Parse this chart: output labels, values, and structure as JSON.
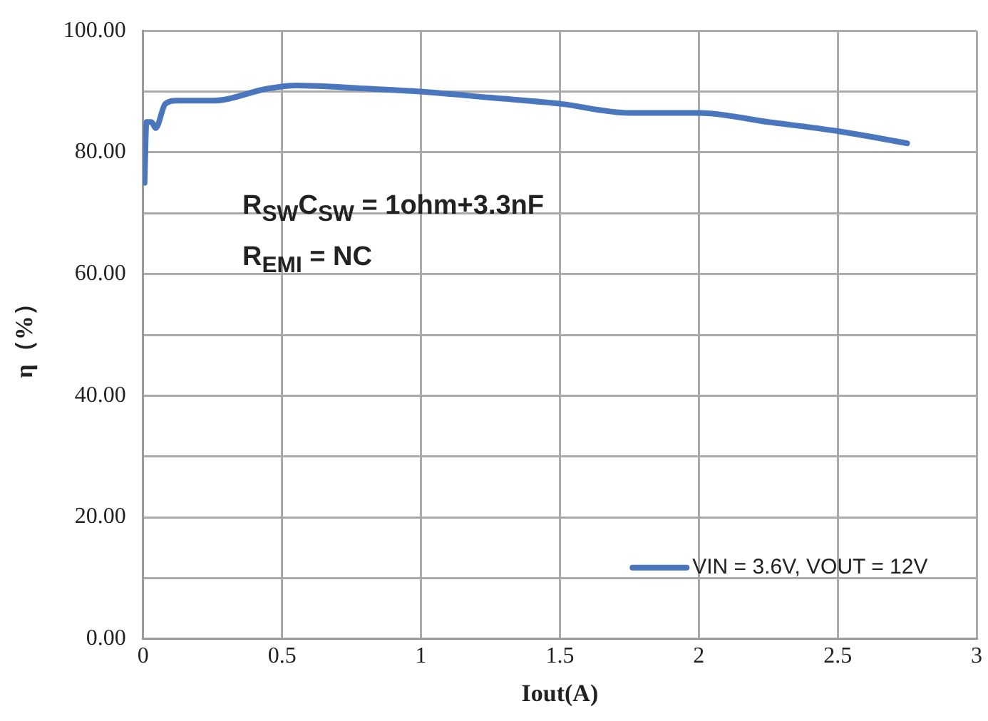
{
  "chart_data": {
    "type": "line",
    "xlabel": "Iout(A)",
    "ylabel": "η（%）",
    "annotations": [
      "R$_{SW}$C$_{SW}$ = 1ohm+3.3nF",
      "R$_{EMI}$ = NC"
    ],
    "series": [
      {
        "name": "VIN = 3.6V, VOUT = 12V",
        "color": "#4a76bd",
        "x": [
          0.005,
          0.012,
          0.03,
          0.045,
          0.08,
          0.12,
          0.25,
          0.45,
          0.55,
          0.8,
          1.0,
          1.25,
          1.5,
          1.75,
          2.0,
          2.25,
          2.5,
          2.75
        ],
        "values": [
          75,
          85,
          85,
          84,
          88,
          88.5,
          88.5,
          90.5,
          91,
          90.5,
          90,
          89,
          88,
          86.5,
          86.5,
          85,
          83.5,
          81.5
        ]
      }
    ],
    "xlim": [
      0,
      3
    ],
    "xticks": [
      0,
      0.5,
      1,
      1.5,
      2,
      2.5,
      3
    ],
    "ylim": [
      0,
      100
    ],
    "yticks": [
      {
        "value": 0,
        "label": "0.00"
      },
      {
        "value": 10,
        "label": null
      },
      {
        "value": 20,
        "label": "20.00"
      },
      {
        "value": 30,
        "label": null
      },
      {
        "value": 40,
        "label": "40.00"
      },
      {
        "value": 50,
        "label": null
      },
      {
        "value": 60,
        "label": "60.00"
      },
      {
        "value": 70,
        "label": null
      },
      {
        "value": 80,
        "label": "80.00"
      },
      {
        "value": 90,
        "label": null
      },
      {
        "value": 100,
        "label": "100.00"
      }
    ],
    "grid": true,
    "legend": "bottom right",
    "marker": "none",
    "line_style": "solid"
  }
}
